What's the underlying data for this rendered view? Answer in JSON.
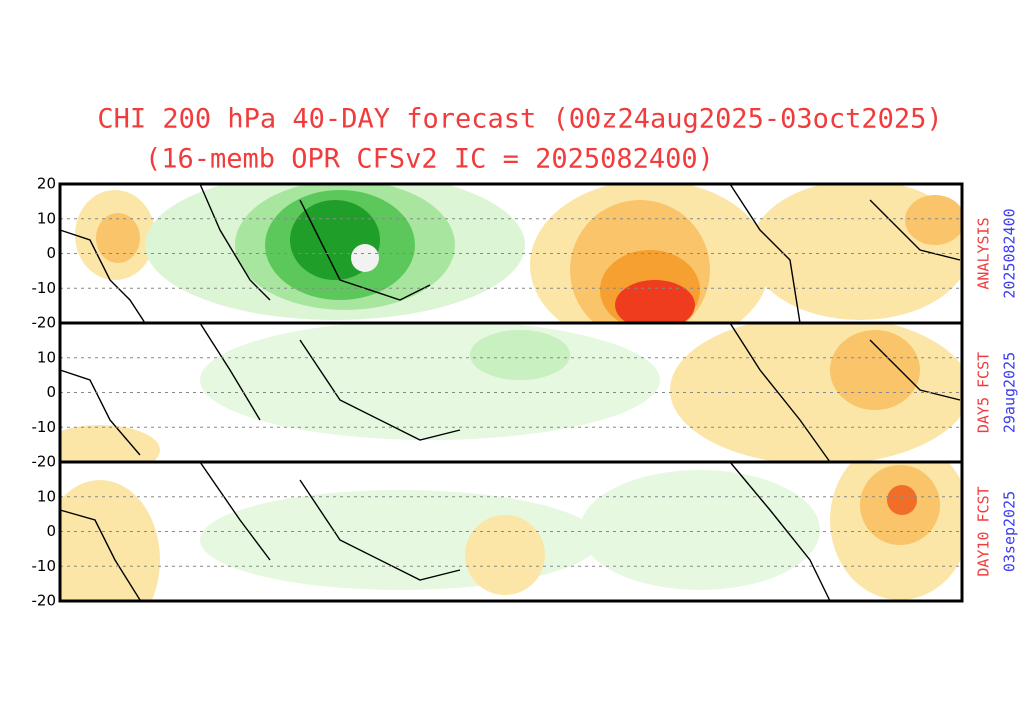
{
  "title": [
    "CHI 200 hPa 40-DAY forecast (00z24aug2025-03oct2025)",
    "(16-memb OPR CFSv2 IC = 2025082400)"
  ],
  "ylim": [
    -20,
    20
  ],
  "panels": [
    {
      "label": "ANALYSIS",
      "date": "2025082400",
      "yticks": [
        20,
        10,
        0,
        -10,
        -20
      ]
    },
    {
      "label": "DAY5 FCST",
      "date": "29aug2025",
      "yticks": [
        10,
        0,
        -10,
        -20
      ]
    },
    {
      "label": "DAY10 FCST",
      "date": "03sep2025",
      "yticks": [
        10,
        0,
        -10,
        -20
      ]
    }
  ]
}
